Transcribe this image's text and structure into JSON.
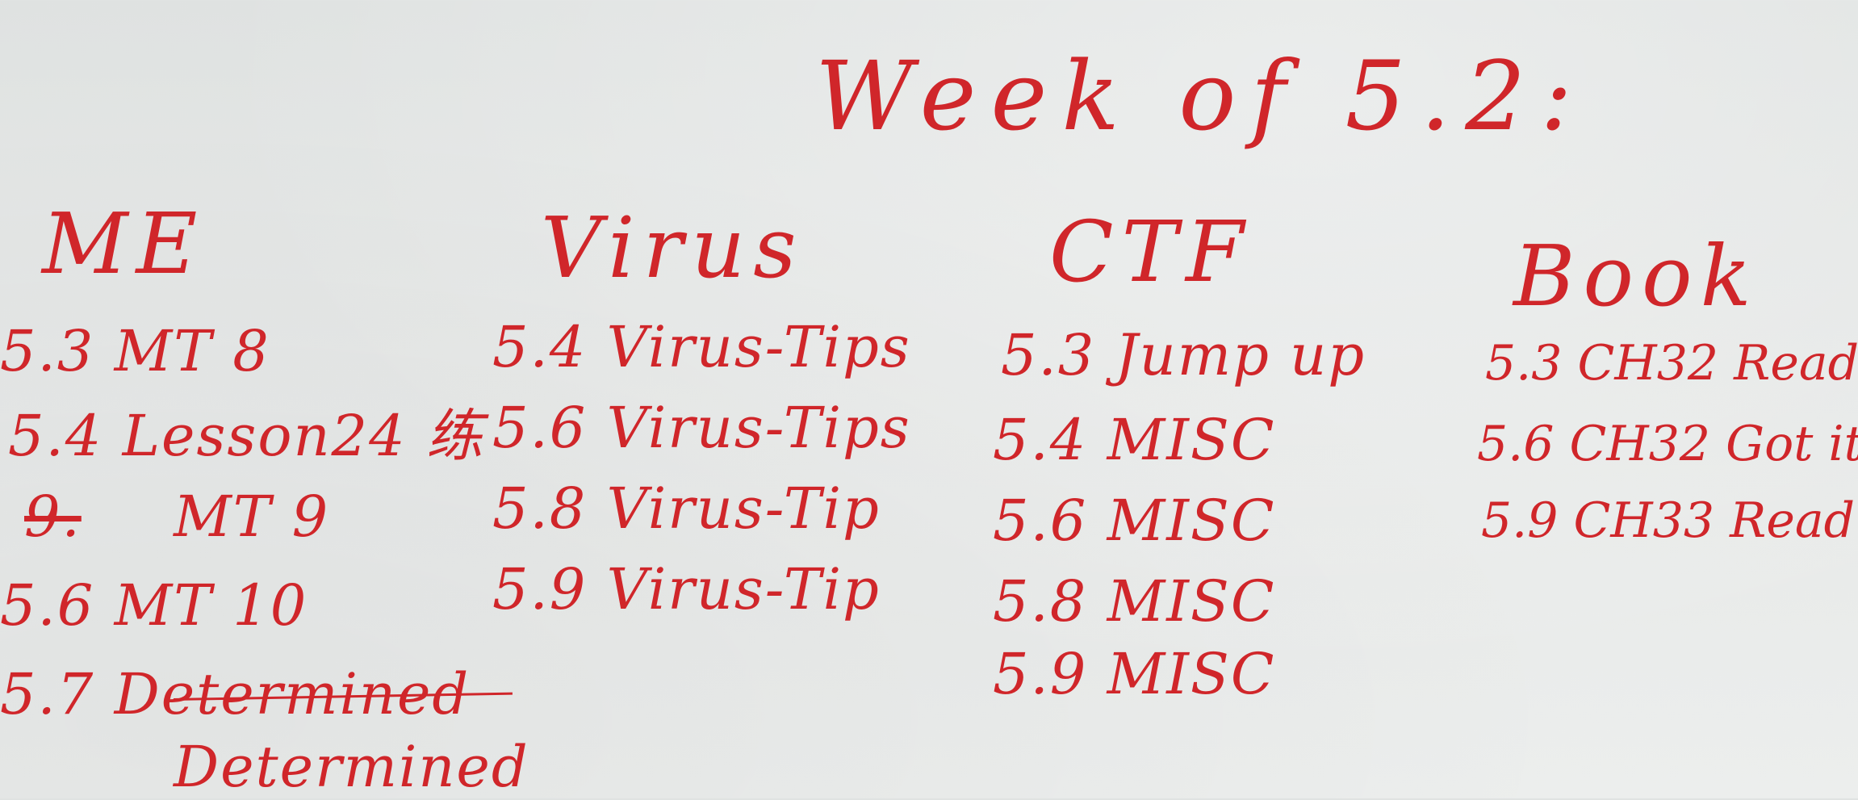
{
  "board": {
    "title": "Week of 5.2:",
    "columns": [
      {
        "heading": "ME",
        "entries": [
          "5.3 MT 8",
          "5.4 Lesson24 练",
          "MT 9",
          "5.6 MT 10",
          "5.7 Determined",
          "Determined"
        ]
      },
      {
        "heading": "Virus",
        "entries": [
          "5.4 Virus-Tips",
          "5.6 Virus-Tips",
          "5.8 Virus-Tip",
          "5.9 Virus-Tip"
        ]
      },
      {
        "heading": "CTF",
        "entries": [
          "5.3 Jump up",
          "5.4 MISC",
          "5.6 MISC",
          "5.8 MISC",
          "5.9 MISC"
        ]
      },
      {
        "heading": "Book",
        "entries": [
          "5.3 CH32 Read",
          "5.6 CH32 Got it",
          "5.9 CH33 Read"
        ]
      }
    ]
  }
}
